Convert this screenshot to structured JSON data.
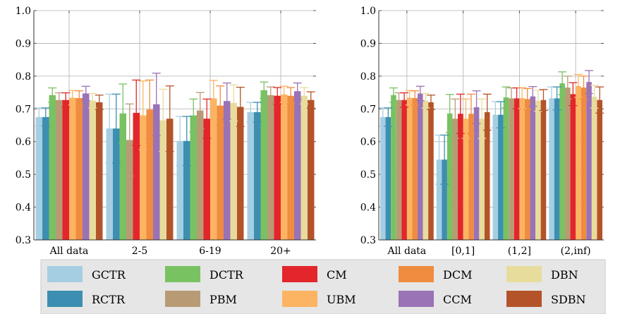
{
  "chart_data": {
    "type": "bar",
    "ylim": [
      0.3,
      1.0
    ],
    "yticks": [
      "0.3",
      "0.4",
      "0.5",
      "0.6",
      "0.7",
      "0.8",
      "0.9",
      "1.0"
    ],
    "grid": true,
    "legend_placement": "bottom",
    "series_styles": [
      {
        "name": "GCTR",
        "color": "#a6cee3"
      },
      {
        "name": "RCTR",
        "color": "#3c8fb0"
      },
      {
        "name": "DCTR",
        "color": "#78c262"
      },
      {
        "name": "PBM",
        "color": "#b89b74"
      },
      {
        "name": "CM",
        "color": "#e3262b"
      },
      {
        "name": "UBM",
        "color": "#fdb462"
      },
      {
        "name": "DCM",
        "color": "#ef8c40"
      },
      {
        "name": "CCM",
        "color": "#9a72b6"
      },
      {
        "name": "DBN",
        "color": "#e8dc9c"
      },
      {
        "name": "SDBN",
        "color": "#b4532a"
      }
    ],
    "panels": [
      {
        "categories": [
          "All data",
          "2-5",
          "6-19",
          "20+"
        ],
        "series": [
          {
            "name": "GCTR",
            "values": [
              0.675,
              0.64,
              0.602,
              0.69
            ],
            "errors": [
              0.028,
              0.105,
              0.075,
              0.03
            ]
          },
          {
            "name": "RCTR",
            "values": [
              0.675,
              0.64,
              0.602,
              0.69
            ],
            "errors": [
              0.028,
              0.105,
              0.075,
              0.03
            ]
          },
          {
            "name": "DCTR",
            "values": [
              0.742,
              0.686,
              0.68,
              0.757
            ],
            "errors": [
              0.022,
              0.09,
              0.05,
              0.025
            ]
          },
          {
            "name": "PBM",
            "values": [
              0.727,
              0.605,
              0.695,
              0.742
            ],
            "errors": [
              0.022,
              0.11,
              0.055,
              0.025
            ]
          },
          {
            "name": "CM",
            "values": [
              0.727,
              0.688,
              0.67,
              0.74
            ],
            "errors": [
              0.022,
              0.1,
              0.06,
              0.025
            ]
          },
          {
            "name": "UBM",
            "values": [
              0.734,
              0.68,
              0.732,
              0.744
            ],
            "errors": [
              0.022,
              0.105,
              0.055,
              0.025
            ]
          },
          {
            "name": "DCM",
            "values": [
              0.733,
              0.698,
              0.71,
              0.74
            ],
            "errors": [
              0.022,
              0.09,
              0.06,
              0.025
            ]
          },
          {
            "name": "CCM",
            "values": [
              0.747,
              0.714,
              0.724,
              0.754
            ],
            "errors": [
              0.022,
              0.095,
              0.055,
              0.025
            ]
          },
          {
            "name": "DBN",
            "values": [
              0.725,
              0.665,
              0.718,
              0.74
            ],
            "errors": [
              0.022,
              0.095,
              0.055,
              0.025
            ]
          },
          {
            "name": "SDBN",
            "values": [
              0.72,
              0.67,
              0.706,
              0.727
            ],
            "errors": [
              0.022,
              0.1,
              0.06,
              0.025
            ]
          }
        ]
      },
      {
        "categories": [
          "All data",
          "[0,1]",
          "(1,2]",
          "(2,inf)"
        ],
        "series": [
          {
            "name": "GCTR",
            "values": [
              0.675,
              0.545,
              0.682,
              0.732
            ],
            "errors": [
              0.028,
              0.075,
              0.04,
              0.035
            ]
          },
          {
            "name": "RCTR",
            "values": [
              0.675,
              0.545,
              0.682,
              0.732
            ],
            "errors": [
              0.028,
              0.075,
              0.04,
              0.035
            ]
          },
          {
            "name": "DCTR",
            "values": [
              0.742,
              0.686,
              0.735,
              0.778
            ],
            "errors": [
              0.022,
              0.058,
              0.032,
              0.035
            ]
          },
          {
            "name": "PBM",
            "values": [
              0.727,
              0.67,
              0.732,
              0.765
            ],
            "errors": [
              0.022,
              0.06,
              0.032,
              0.035
            ]
          },
          {
            "name": "CM",
            "values": [
              0.727,
              0.685,
              0.732,
              0.745
            ],
            "errors": [
              0.022,
              0.06,
              0.032,
              0.035
            ]
          },
          {
            "name": "UBM",
            "values": [
              0.734,
              0.67,
              0.733,
              0.77
            ],
            "errors": [
              0.022,
              0.06,
              0.032,
              0.035
            ]
          },
          {
            "name": "DCM",
            "values": [
              0.733,
              0.685,
              0.73,
              0.765
            ],
            "errors": [
              0.022,
              0.06,
              0.032,
              0.035
            ]
          },
          {
            "name": "CCM",
            "values": [
              0.747,
              0.705,
              0.738,
              0.782
            ],
            "errors": [
              0.022,
              0.05,
              0.03,
              0.035
            ]
          },
          {
            "name": "DBN",
            "values": [
              0.725,
              0.67,
              0.725,
              0.737
            ],
            "errors": [
              0.022,
              0.06,
              0.032,
              0.035
            ]
          },
          {
            "name": "SDBN",
            "values": [
              0.72,
              0.69,
              0.727,
              0.727
            ],
            "errors": [
              0.022,
              0.055,
              0.032,
              0.04
            ]
          }
        ]
      }
    ]
  },
  "legend": {
    "items": [
      "GCTR",
      "DCTR",
      "CM",
      "DCM",
      "DBN",
      "RCTR",
      "PBM",
      "UBM",
      "CCM",
      "SDBN"
    ]
  }
}
